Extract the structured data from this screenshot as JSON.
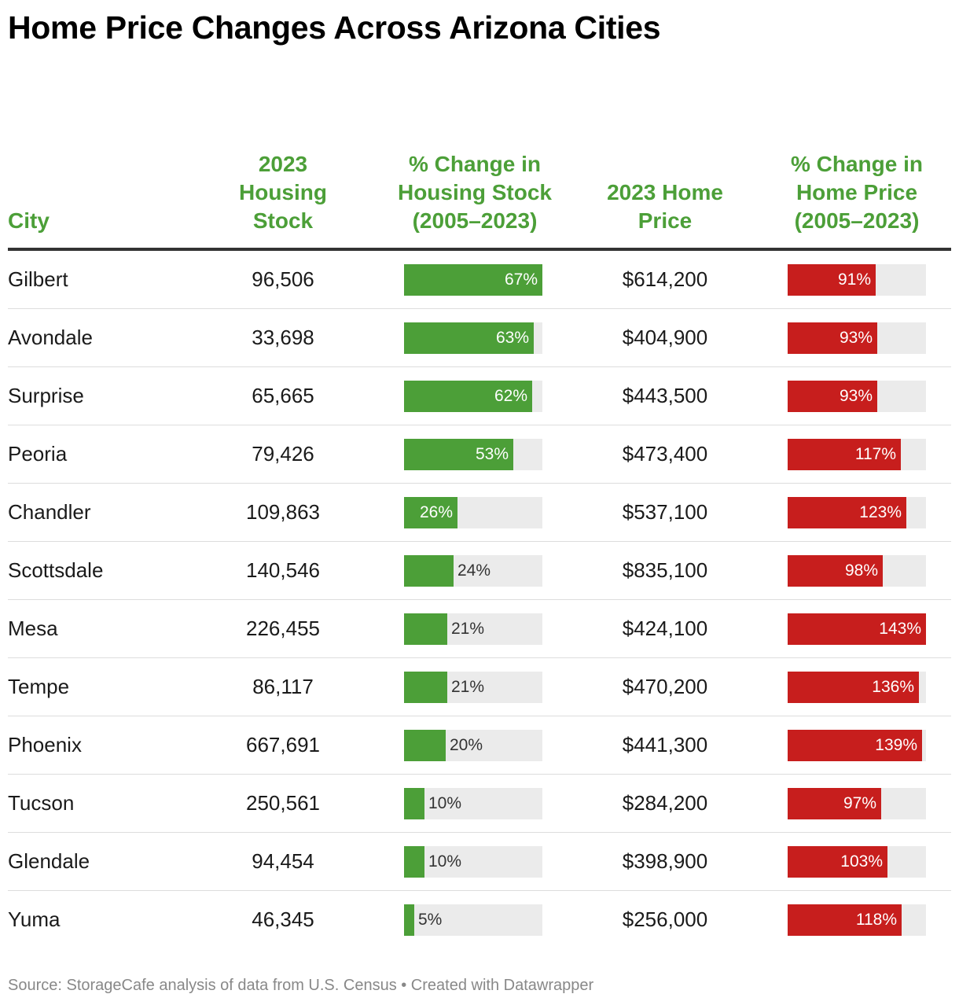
{
  "title": "Home Price Changes Across Arizona Cities",
  "colors": {
    "stock_bar": "#4c9f38",
    "price_bar": "#c71e1d",
    "header_text": "#4c9f38",
    "bar_track": "#ebebeb"
  },
  "headers": {
    "city": "City",
    "stock": "2023 Housing Stock",
    "stock_change": "% Change in Housing Stock (2005–2023)",
    "price": "2023 Home Price",
    "price_change": "% Change in Home Price (2005–2023)"
  },
  "chart_data": {
    "type": "table",
    "title": "Home Price Changes Across Arizona Cities",
    "columns": [
      "City",
      "2023 Housing Stock",
      "% Change in Housing Stock (2005–2023)",
      "2023 Home Price",
      "% Change in Home Price (2005–2023)"
    ],
    "stock_change_max": 67,
    "price_change_max": 143,
    "rows": [
      {
        "city": "Gilbert",
        "stock": "96,506",
        "stock_change": 67,
        "stock_change_label": "67%",
        "price": "$614,200",
        "price_change": 91,
        "price_change_label": "91%"
      },
      {
        "city": "Avondale",
        "stock": "33,698",
        "stock_change": 63,
        "stock_change_label": "63%",
        "price": "$404,900",
        "price_change": 93,
        "price_change_label": "93%"
      },
      {
        "city": "Surprise",
        "stock": "65,665",
        "stock_change": 62,
        "stock_change_label": "62%",
        "price": "$443,500",
        "price_change": 93,
        "price_change_label": "93%"
      },
      {
        "city": "Peoria",
        "stock": "79,426",
        "stock_change": 53,
        "stock_change_label": "53%",
        "price": "$473,400",
        "price_change": 117,
        "price_change_label": "117%"
      },
      {
        "city": "Chandler",
        "stock": "109,863",
        "stock_change": 26,
        "stock_change_label": "26%",
        "price": "$537,100",
        "price_change": 123,
        "price_change_label": "123%"
      },
      {
        "city": "Scottsdale",
        "stock": "140,546",
        "stock_change": 24,
        "stock_change_label": "24%",
        "price": "$835,100",
        "price_change": 98,
        "price_change_label": "98%"
      },
      {
        "city": "Mesa",
        "stock": "226,455",
        "stock_change": 21,
        "stock_change_label": "21%",
        "price": "$424,100",
        "price_change": 143,
        "price_change_label": "143%"
      },
      {
        "city": "Tempe",
        "stock": "86,117",
        "stock_change": 21,
        "stock_change_label": "21%",
        "price": "$470,200",
        "price_change": 136,
        "price_change_label": "136%"
      },
      {
        "city": "Phoenix",
        "stock": "667,691",
        "stock_change": 20,
        "stock_change_label": "20%",
        "price": "$441,300",
        "price_change": 139,
        "price_change_label": "139%"
      },
      {
        "city": "Tucson",
        "stock": "250,561",
        "stock_change": 10,
        "stock_change_label": "10%",
        "price": "$284,200",
        "price_change": 97,
        "price_change_label": "97%"
      },
      {
        "city": "Glendale",
        "stock": "94,454",
        "stock_change": 10,
        "stock_change_label": "10%",
        "price": "$398,900",
        "price_change": 103,
        "price_change_label": "103%"
      },
      {
        "city": "Yuma",
        "stock": "46,345",
        "stock_change": 5,
        "stock_change_label": "5%",
        "price": "$256,000",
        "price_change": 118,
        "price_change_label": "118%"
      }
    ]
  },
  "footer": "Source: StorageCafe analysis of data from U.S. Census • Created with Datawrapper"
}
